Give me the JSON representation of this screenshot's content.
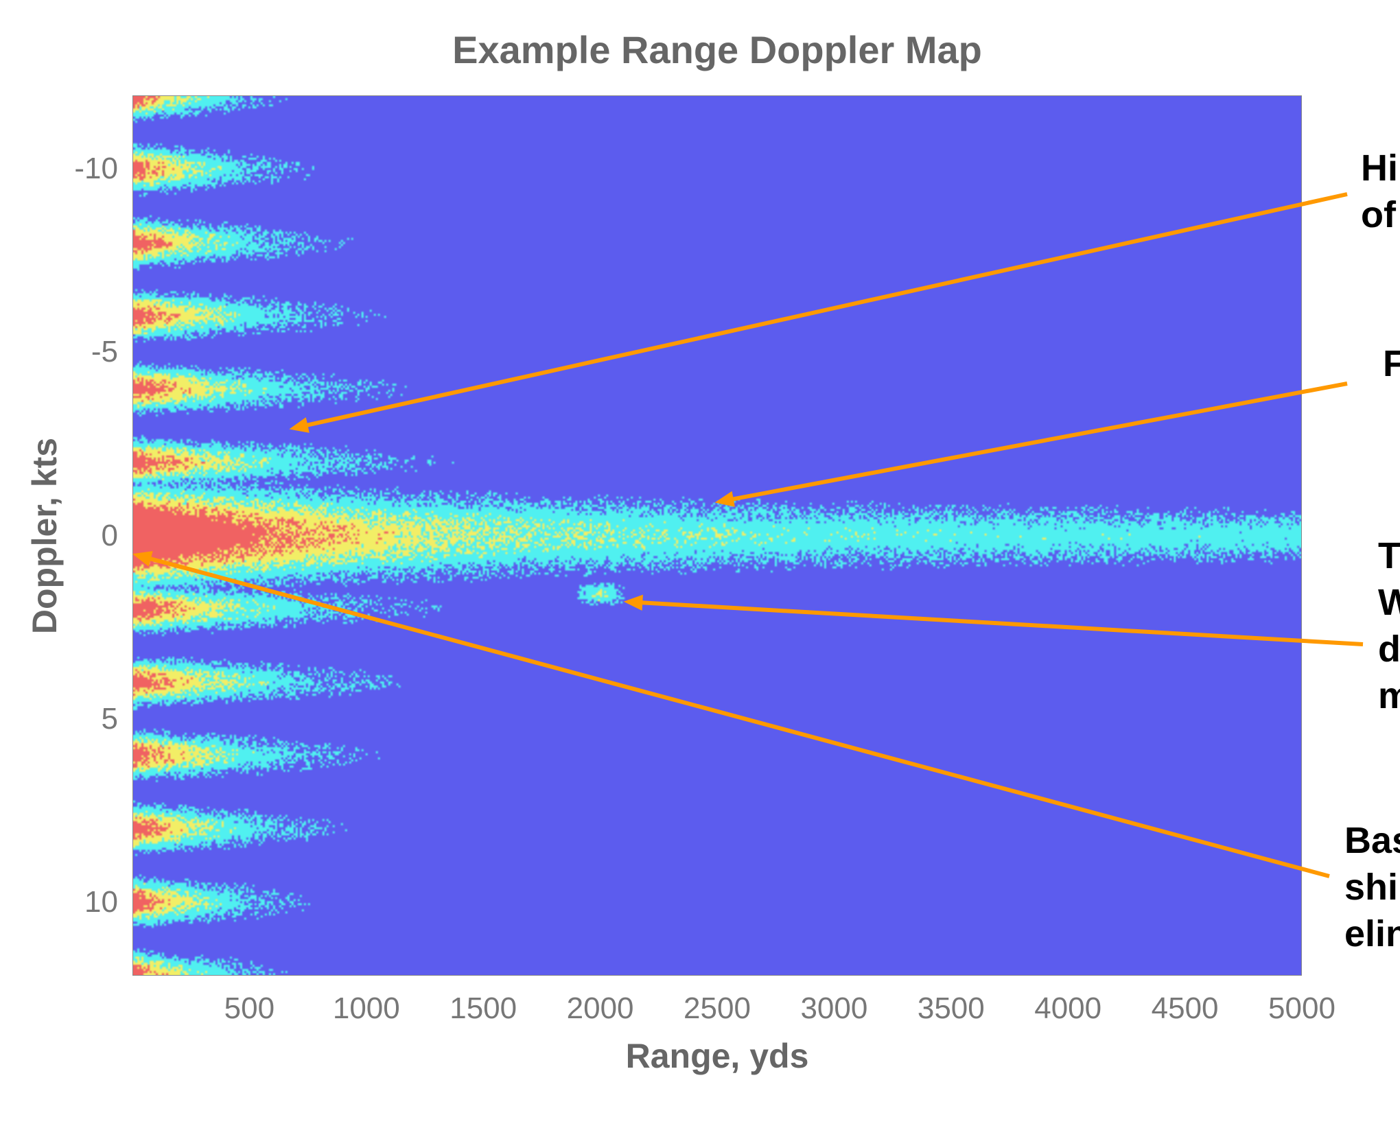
{
  "chart_data": {
    "type": "heatmap",
    "title": "Example Range Doppler Map",
    "xlabel": "Range, yds",
    "ylabel": "Doppler, kts",
    "xlim": [
      0,
      5000
    ],
    "ylim": [
      -12,
      12
    ],
    "x_ticks": [
      "500",
      "1000",
      "1500",
      "2000",
      "2500",
      "3000",
      "3500",
      "4000",
      "4500",
      "5000"
    ],
    "x_tick_values": [
      500,
      1000,
      1500,
      2000,
      2500,
      3000,
      3500,
      4000,
      4500,
      5000
    ],
    "y_ticks": [
      "-10",
      "-5",
      "0",
      "5",
      "10"
    ],
    "y_tick_values": [
      -10,
      -5,
      0,
      5,
      10
    ],
    "colormap": {
      "background": "#5c5cee",
      "low": "#50f0f0",
      "mid": "#f2ee66",
      "high": "#f06262"
    },
    "features": {
      "main_return_doppler": 0,
      "sidelobe_spacing_kts": 2,
      "target": {
        "range": 2000,
        "doppler": 1.6
      }
    },
    "annotations": [
      {
        "lines": [
          "Hi",
          "of"
        ],
        "point": {
          "range": 670,
          "doppler": -2.9
        }
      },
      {
        "lines": [
          "F"
        ],
        "point": {
          "range": 2490,
          "doppler": -0.9
        }
      },
      {
        "lines": [
          "T",
          "W",
          "d",
          "m"
        ],
        "point": {
          "range": 2100,
          "doppler": 1.8
        }
      },
      {
        "lines": [
          "Bas",
          "shi",
          "elin"
        ],
        "point": {
          "range": 0,
          "doppler": 0.5
        }
      }
    ],
    "annotation_color": "#ff9900"
  }
}
